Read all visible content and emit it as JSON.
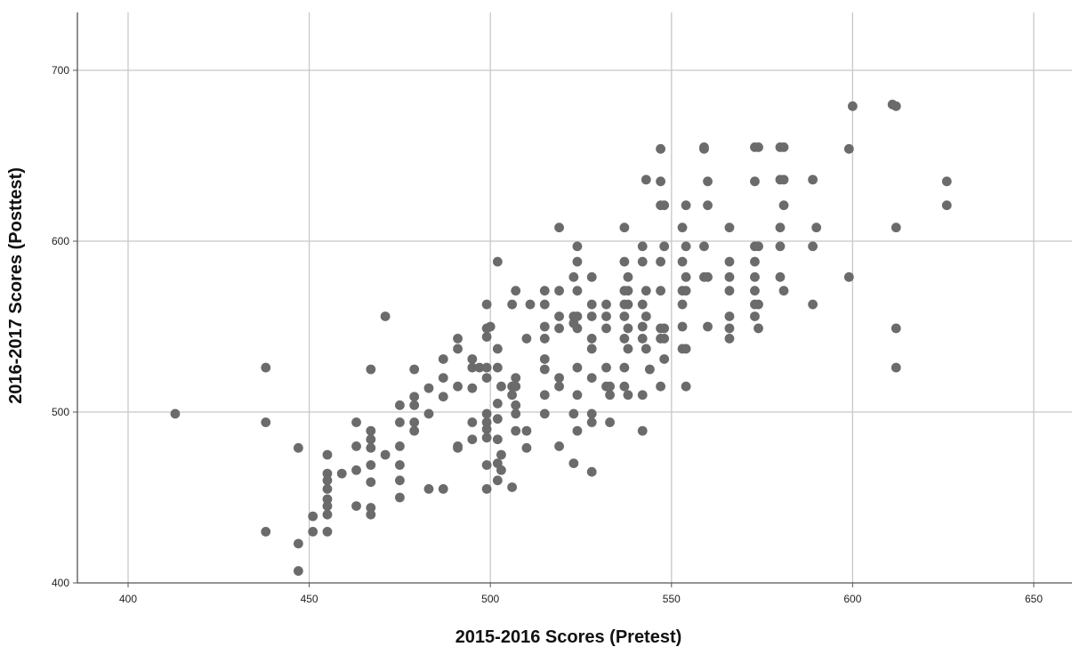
{
  "chart_data": {
    "type": "scatter",
    "xlabel": "2015-2016 Scores (Pretest)",
    "ylabel": "2016-2017 Scores (Posttest)",
    "xlim": [
      387,
      1205
    ],
    "ylim": [
      400,
      730
    ],
    "x_ticks": [
      400,
      450,
      500,
      550,
      600,
      650
    ],
    "y_ticks": [
      400,
      500,
      600,
      700
    ],
    "grid": true,
    "colors": {
      "point": "#6b6b6b",
      "grid": "#c8c8c8",
      "axis": "#555555"
    },
    "series": [
      {
        "points": [
          [
            413,
            499
          ],
          [
            438,
            526
          ],
          [
            438,
            494
          ],
          [
            438,
            430
          ],
          [
            447,
            479
          ],
          [
            447,
            423
          ],
          [
            447,
            407
          ],
          [
            451,
            439
          ],
          [
            451,
            430
          ],
          [
            455,
            475
          ],
          [
            455,
            464
          ],
          [
            455,
            460
          ],
          [
            455,
            455
          ],
          [
            455,
            449
          ],
          [
            455,
            445
          ],
          [
            455,
            440
          ],
          [
            455,
            430
          ],
          [
            459,
            464
          ],
          [
            463,
            494
          ],
          [
            463,
            480
          ],
          [
            463,
            466
          ],
          [
            463,
            445
          ],
          [
            467,
            525
          ],
          [
            467,
            489
          ],
          [
            467,
            484
          ],
          [
            467,
            479
          ],
          [
            467,
            469
          ],
          [
            467,
            459
          ],
          [
            467,
            444
          ],
          [
            467,
            440
          ],
          [
            471,
            556
          ],
          [
            471,
            475
          ],
          [
            475,
            504
          ],
          [
            475,
            494
          ],
          [
            475,
            480
          ],
          [
            475,
            469
          ],
          [
            475,
            460
          ],
          [
            475,
            450
          ],
          [
            479,
            525
          ],
          [
            479,
            509
          ],
          [
            479,
            504
          ],
          [
            479,
            494
          ],
          [
            479,
            489
          ],
          [
            483,
            514
          ],
          [
            483,
            499
          ],
          [
            483,
            455
          ],
          [
            487,
            531
          ],
          [
            487,
            520
          ],
          [
            487,
            509
          ],
          [
            487,
            455
          ],
          [
            491,
            543
          ],
          [
            491,
            537
          ],
          [
            491,
            515
          ],
          [
            491,
            480
          ],
          [
            491,
            479
          ],
          [
            495,
            531
          ],
          [
            495,
            526
          ],
          [
            495,
            514
          ],
          [
            495,
            494
          ],
          [
            495,
            484
          ],
          [
            497,
            526
          ],
          [
            499,
            563
          ],
          [
            499,
            549
          ],
          [
            499,
            544
          ],
          [
            499,
            526
          ],
          [
            499,
            520
          ],
          [
            499,
            499
          ],
          [
            499,
            494
          ],
          [
            499,
            490
          ],
          [
            499,
            485
          ],
          [
            499,
            469
          ],
          [
            499,
            455
          ],
          [
            500,
            550
          ],
          [
            502,
            588
          ],
          [
            502,
            537
          ],
          [
            502,
            526
          ],
          [
            502,
            505
          ],
          [
            502,
            496
          ],
          [
            502,
            484
          ],
          [
            502,
            470
          ],
          [
            502,
            460
          ],
          [
            503,
            515
          ],
          [
            503,
            475
          ],
          [
            503,
            466
          ],
          [
            506,
            563
          ],
          [
            506,
            515
          ],
          [
            506,
            510
          ],
          [
            506,
            456
          ],
          [
            507,
            571
          ],
          [
            507,
            520
          ],
          [
            507,
            515
          ],
          [
            507,
            504
          ],
          [
            507,
            499
          ],
          [
            507,
            489
          ],
          [
            510,
            543
          ],
          [
            510,
            489
          ],
          [
            510,
            479
          ],
          [
            511,
            563
          ],
          [
            515,
            571
          ],
          [
            515,
            563
          ],
          [
            515,
            550
          ],
          [
            515,
            543
          ],
          [
            515,
            531
          ],
          [
            515,
            525
          ],
          [
            515,
            510
          ],
          [
            515,
            499
          ],
          [
            519,
            608
          ],
          [
            519,
            571
          ],
          [
            519,
            556
          ],
          [
            519,
            549
          ],
          [
            519,
            520
          ],
          [
            519,
            515
          ],
          [
            519,
            480
          ],
          [
            523,
            579
          ],
          [
            523,
            556
          ],
          [
            523,
            552
          ],
          [
            523,
            499
          ],
          [
            523,
            470
          ],
          [
            524,
            597
          ],
          [
            524,
            588
          ],
          [
            524,
            571
          ],
          [
            524,
            556
          ],
          [
            524,
            549
          ],
          [
            524,
            526
          ],
          [
            524,
            510
          ],
          [
            524,
            489
          ],
          [
            528,
            579
          ],
          [
            528,
            563
          ],
          [
            528,
            556
          ],
          [
            528,
            543
          ],
          [
            528,
            537
          ],
          [
            528,
            520
          ],
          [
            528,
            499
          ],
          [
            528,
            494
          ],
          [
            528,
            465
          ],
          [
            532,
            563
          ],
          [
            532,
            556
          ],
          [
            532,
            549
          ],
          [
            532,
            526
          ],
          [
            532,
            515
          ],
          [
            533,
            510
          ],
          [
            533,
            515
          ],
          [
            533,
            494
          ],
          [
            537,
            608
          ],
          [
            537,
            588
          ],
          [
            537,
            571
          ],
          [
            537,
            563
          ],
          [
            537,
            556
          ],
          [
            537,
            543
          ],
          [
            537,
            526
          ],
          [
            537,
            515
          ],
          [
            538,
            579
          ],
          [
            538,
            571
          ],
          [
            538,
            563
          ],
          [
            538,
            549
          ],
          [
            538,
            537
          ],
          [
            538,
            510
          ],
          [
            542,
            597
          ],
          [
            542,
            588
          ],
          [
            542,
            563
          ],
          [
            542,
            550
          ],
          [
            542,
            543
          ],
          [
            542,
            510
          ],
          [
            542,
            489
          ],
          [
            543,
            636
          ],
          [
            543,
            571
          ],
          [
            543,
            556
          ],
          [
            543,
            537
          ],
          [
            544,
            525
          ],
          [
            547,
            654
          ],
          [
            547,
            635
          ],
          [
            547,
            621
          ],
          [
            547,
            588
          ],
          [
            547,
            571
          ],
          [
            547,
            549
          ],
          [
            547,
            543
          ],
          [
            547,
            515
          ],
          [
            548,
            621
          ],
          [
            548,
            597
          ],
          [
            548,
            549
          ],
          [
            548,
            543
          ],
          [
            548,
            531
          ],
          [
            553,
            608
          ],
          [
            553,
            588
          ],
          [
            553,
            571
          ],
          [
            553,
            563
          ],
          [
            553,
            550
          ],
          [
            553,
            537
          ],
          [
            554,
            621
          ],
          [
            554,
            597
          ],
          [
            554,
            579
          ],
          [
            554,
            571
          ],
          [
            554,
            537
          ],
          [
            554,
            515
          ],
          [
            559,
            655
          ],
          [
            559,
            654
          ],
          [
            559,
            597
          ],
          [
            559,
            579
          ],
          [
            560,
            635
          ],
          [
            560,
            621
          ],
          [
            560,
            579
          ],
          [
            560,
            550
          ],
          [
            566,
            608
          ],
          [
            566,
            588
          ],
          [
            566,
            579
          ],
          [
            566,
            571
          ],
          [
            566,
            556
          ],
          [
            566,
            549
          ],
          [
            566,
            543
          ],
          [
            573,
            655
          ],
          [
            573,
            635
          ],
          [
            573,
            597
          ],
          [
            573,
            588
          ],
          [
            573,
            579
          ],
          [
            573,
            571
          ],
          [
            573,
            563
          ],
          [
            573,
            556
          ],
          [
            574,
            655
          ],
          [
            574,
            597
          ],
          [
            574,
            563
          ],
          [
            574,
            549
          ],
          [
            580,
            655
          ],
          [
            580,
            636
          ],
          [
            580,
            608
          ],
          [
            580,
            597
          ],
          [
            580,
            579
          ],
          [
            581,
            655
          ],
          [
            581,
            636
          ],
          [
            581,
            621
          ],
          [
            581,
            571
          ],
          [
            589,
            636
          ],
          [
            589,
            597
          ],
          [
            589,
            563
          ],
          [
            590,
            608
          ],
          [
            599,
            654
          ],
          [
            599,
            579
          ],
          [
            600,
            679
          ],
          [
            611,
            680
          ],
          [
            612,
            679
          ],
          [
            612,
            608
          ],
          [
            612,
            549
          ],
          [
            612,
            526
          ],
          [
            626,
            635
          ],
          [
            626,
            621
          ]
        ]
      }
    ]
  }
}
